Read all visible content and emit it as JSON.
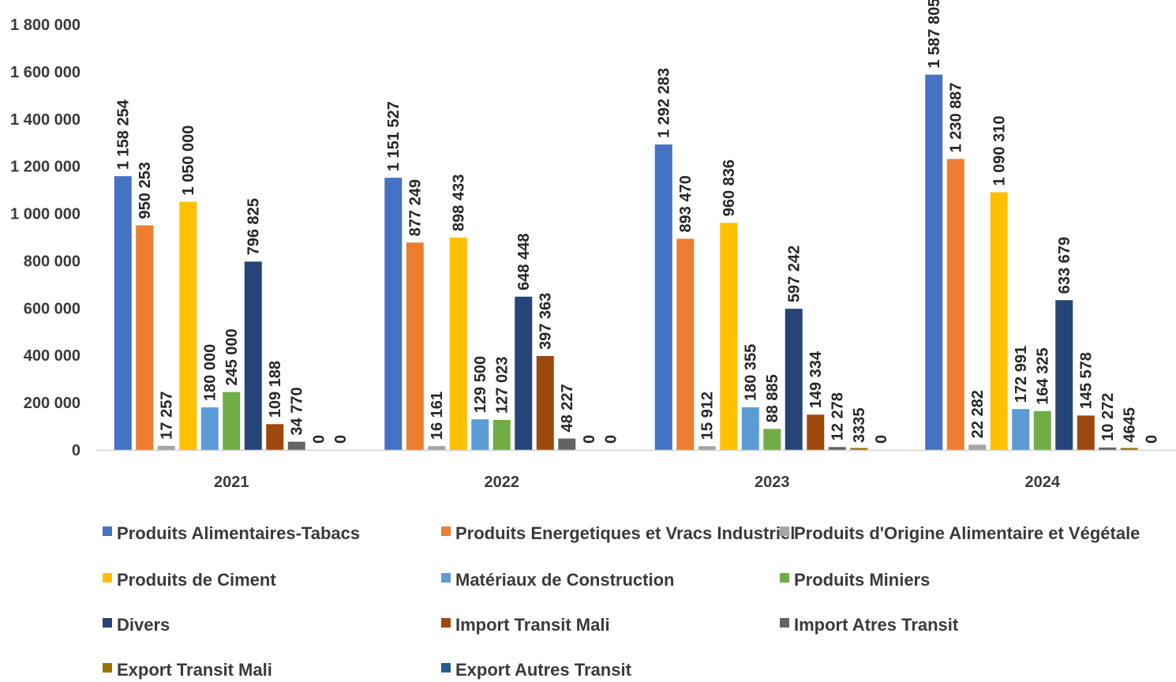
{
  "chart_data": {
    "type": "bar",
    "categories": [
      "2021",
      "2022",
      "2023",
      "2024"
    ],
    "ylim": [
      0,
      1800000
    ],
    "y_ticks": [
      0,
      200000,
      400000,
      600000,
      800000,
      1000000,
      1200000,
      1400000,
      1600000,
      1800000
    ],
    "y_tick_labels": [
      "0",
      "200 000",
      "400 000",
      "600 000",
      "800 000",
      "1 000 000",
      "1 200 000",
      "1 400 000",
      "1 600 000",
      "1 800 000"
    ],
    "grid": false,
    "legend_position": "bottom",
    "series": [
      {
        "name": "Produits  Alimentaires-Tabacs",
        "color": "#4472C4",
        "values": [
          1158254,
          1151527,
          1292283,
          1587805
        ],
        "labels": [
          "1 158 254",
          "1 151 527",
          "1 292 283",
          "1 587 805"
        ]
      },
      {
        "name": "Produits Energetiques et Vracs Industriel",
        "color": "#ED7D31",
        "values": [
          950253,
          877249,
          893470,
          1230887
        ],
        "labels": [
          "950 253",
          "877 249",
          "893 470",
          "1 230 887"
        ]
      },
      {
        "name": "Produits d'Origine Alimentaire et Végétale",
        "color": "#A5A5A5",
        "values": [
          17257,
          16161,
          15912,
          22282
        ],
        "labels": [
          "17 257",
          "16 161",
          "15 912",
          "22 282"
        ]
      },
      {
        "name": "Produits de Ciment",
        "color": "#FFC000",
        "values": [
          1050000,
          898433,
          960836,
          1090310
        ],
        "labels": [
          "1 050 000",
          "898 433",
          "960 836",
          "1 090 310"
        ]
      },
      {
        "name": "Matériaux de Construction",
        "color": "#5B9BD5",
        "values": [
          180000,
          129500,
          180355,
          172991
        ],
        "labels": [
          "180 000",
          "129 500",
          "180 355",
          "172 991"
        ]
      },
      {
        "name": "Produits Miniers",
        "color": "#70AD47",
        "values": [
          245000,
          127023,
          88885,
          164325
        ],
        "labels": [
          "245 000",
          "127 023",
          "88 885",
          "164 325"
        ]
      },
      {
        "name": "Divers",
        "color": "#264478",
        "values": [
          796825,
          648448,
          597242,
          633679
        ],
        "labels": [
          "796 825",
          "648 448",
          "597 242",
          "633 679"
        ]
      },
      {
        "name": "Import Transit Mali",
        "color": "#9E480E",
        "values": [
          109188,
          397363,
          149334,
          145578
        ],
        "labels": [
          "109 188",
          "397 363",
          "149 334",
          "145 578"
        ]
      },
      {
        "name": "Import  Atres Transit",
        "color": "#636363",
        "values": [
          34770,
          48227,
          12278,
          10272
        ],
        "labels": [
          "34 770",
          "48 227",
          "12 278",
          "10 272"
        ]
      },
      {
        "name": "Export Transit Mali",
        "color": "#997300",
        "values": [
          0,
          0,
          3335,
          4645
        ],
        "labels": [
          "0",
          "0",
          "3335",
          "4645"
        ]
      },
      {
        "name": "Export Autres Transit",
        "color": "#255E91",
        "values": [
          0,
          0,
          0,
          0
        ],
        "labels": [
          "0",
          "0",
          "0",
          "0"
        ]
      }
    ]
  }
}
